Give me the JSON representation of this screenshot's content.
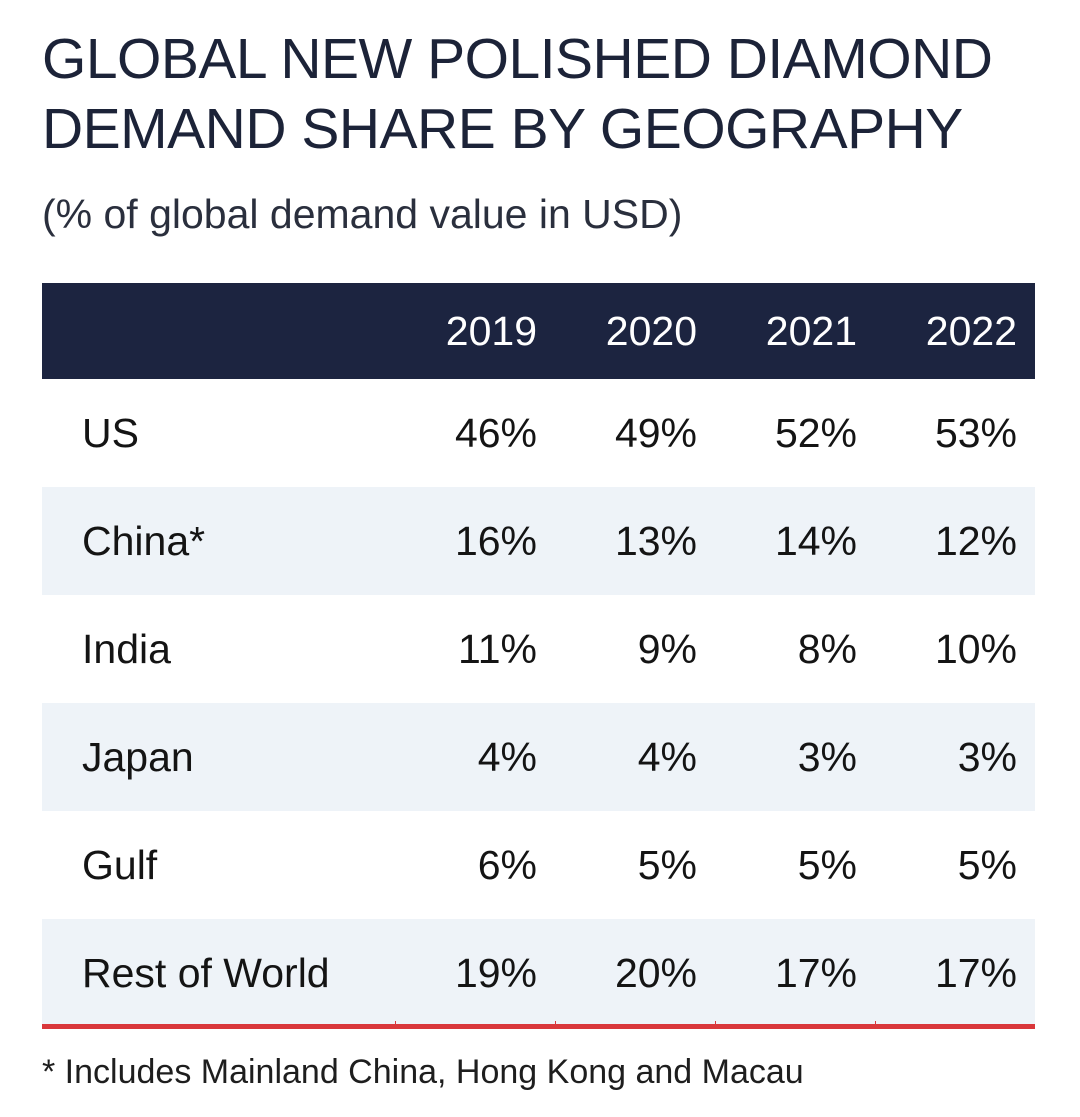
{
  "title_line1": "GLOBAL NEW POLISHED DIAMOND",
  "title_line2": "DEMAND SHARE BY GEOGRAPHY",
  "subtitle": "(% of global demand value in USD)",
  "footnote": "* Includes Mainland China, Hong Kong and Macau",
  "colors": {
    "header_bg": "#1c2440",
    "shaded_row_bg": "#eef3f8",
    "accent_line": "#d9373b"
  },
  "chart_data": {
    "type": "table",
    "title": "GLOBAL NEW POLISHED DIAMOND DEMAND SHARE BY GEOGRAPHY",
    "subtitle": "(% of global demand value in USD)",
    "columns": [
      "2019",
      "2020",
      "2021",
      "2022"
    ],
    "rows": [
      {
        "label": "US",
        "values": [
          "46%",
          "49%",
          "52%",
          "53%"
        ]
      },
      {
        "label": "China*",
        "values": [
          "16%",
          "13%",
          "14%",
          "12%"
        ]
      },
      {
        "label": "India",
        "values": [
          "11%",
          "9%",
          "8%",
          "10%"
        ]
      },
      {
        "label": "Japan",
        "values": [
          "4%",
          "4%",
          "3%",
          "3%"
        ]
      },
      {
        "label": "Gulf",
        "values": [
          "6%",
          "5%",
          "5%",
          "5%"
        ]
      },
      {
        "label": "Rest of World",
        "values": [
          "19%",
          "20%",
          "17%",
          "17%"
        ]
      }
    ]
  }
}
